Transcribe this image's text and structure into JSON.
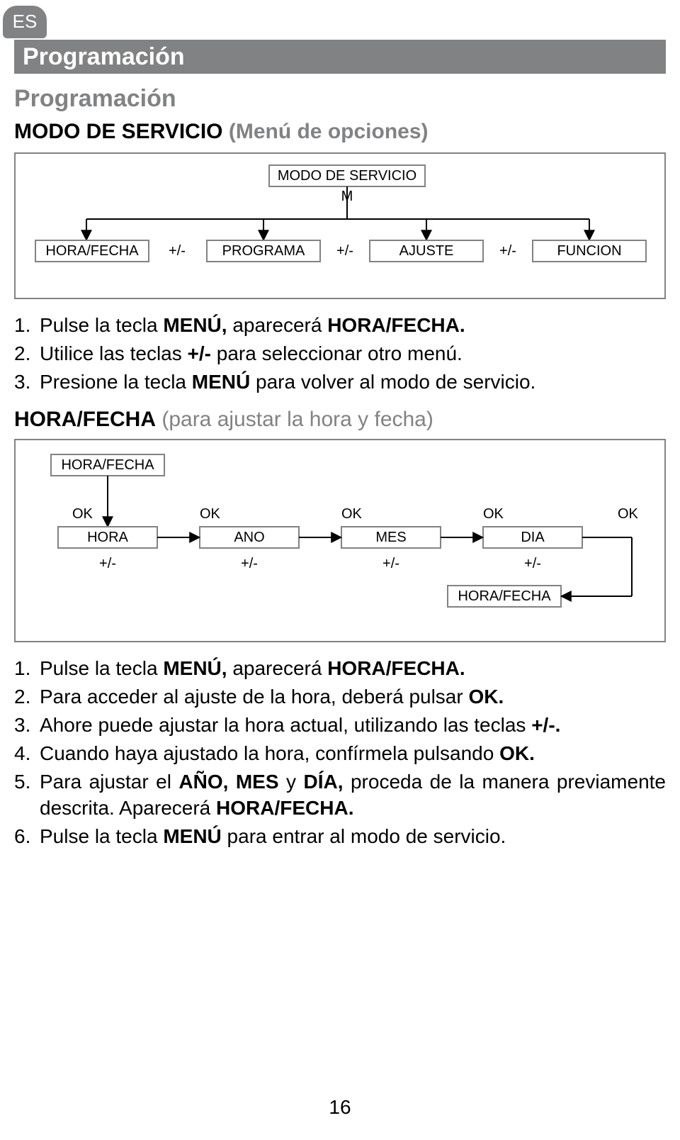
{
  "lang_badge": "ES",
  "section_title": "Programación",
  "heading": "Programación",
  "mode_heading_bold": "MODO DE SERVICIO",
  "mode_heading_light": " (Menú de opciones)",
  "diagram1": {
    "root": "MODO DE SERVICIO",
    "root_sub": "M",
    "nodes": [
      "HORA/FECHA",
      "PROGRAMA",
      "AJUSTE",
      "FUNCION"
    ],
    "separators": [
      "+/-",
      "+/-",
      "+/-"
    ],
    "border_color": "#818284",
    "text_color": "#000000",
    "arrow_color": "#818284"
  },
  "list1": [
    {
      "n": "1.",
      "pre": "Pulse la tecla ",
      "b1": "MENÚ,",
      "mid": " aparecerá ",
      "b2": "HORA/FECHA.",
      "post": ""
    },
    {
      "n": "2.",
      "pre": "Utilice las teclas ",
      "b1": "+/-",
      "mid": " para seleccionar otro menú.",
      "b2": "",
      "post": ""
    },
    {
      "n": "3.",
      "pre": "Presione la tecla ",
      "b1": "MENÚ",
      "mid": " para volver al modo de servicio.",
      "b2": "",
      "post": ""
    }
  ],
  "subheading_bold": "HORA/FECHA",
  "subheading_light": " (para ajustar la hora y fecha)",
  "diagram2": {
    "root": "HORA/FECHA",
    "ok": "OK",
    "nodes": [
      "HORA",
      "ANO",
      "MES",
      "DIA"
    ],
    "adjust": "+/-",
    "return_node": "HORA/FECHA",
    "border_color": "#818284",
    "text_color": "#000000"
  },
  "list2": [
    {
      "n": "1.",
      "parts": [
        {
          "t": "Pulse la tecla "
        },
        {
          "t": "MENÚ,",
          "b": true
        },
        {
          "t": " aparecerá "
        },
        {
          "t": "HORA/FECHA.",
          "b": true
        }
      ]
    },
    {
      "n": "2.",
      "parts": [
        {
          "t": "Para acceder al ajuste de la hora, deberá pulsar "
        },
        {
          "t": "OK.",
          "b": true
        }
      ]
    },
    {
      "n": "3.",
      "parts": [
        {
          "t": "Ahore puede ajustar la hora actual, utilizando las teclas "
        },
        {
          "t": "+/-.",
          "b": true
        }
      ]
    },
    {
      "n": "4.",
      "parts": [
        {
          "t": "Cuando haya ajustado la hora, confírmela pulsando "
        },
        {
          "t": "OK.",
          "b": true
        }
      ]
    },
    {
      "n": "5.",
      "parts": [
        {
          "t": "Para ajustar el "
        },
        {
          "t": "AÑO, MES",
          "b": true
        },
        {
          "t": " y "
        },
        {
          "t": "DÍA,",
          "b": true
        },
        {
          "t": " proceda de la manera previamente descrita. Aparecerá "
        },
        {
          "t": "HORA/FECHA.",
          "b": true
        }
      ]
    },
    {
      "n": "6.",
      "parts": [
        {
          "t": "Pulse la tecla "
        },
        {
          "t": "MENÚ",
          "b": true
        },
        {
          "t": " para entrar al modo de servicio."
        }
      ]
    }
  ],
  "page_number": "16"
}
